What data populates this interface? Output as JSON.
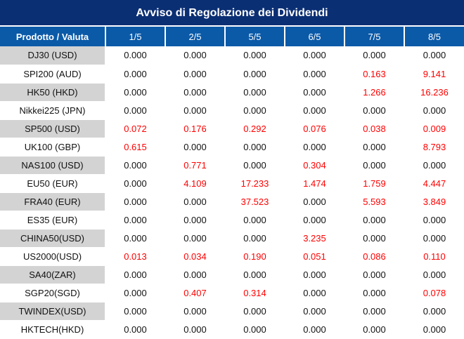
{
  "title": "Avviso di Regolazione dei Dividendi",
  "colors": {
    "header_bg": "#0b2f73",
    "column_header_bg": "#0b5aa8",
    "highlight": "#ff0000",
    "row_shade": "#d3d3d3"
  },
  "columns": [
    "Prodotto / Valuta",
    "1/5",
    "2/5",
    "5/5",
    "6/5",
    "7/5",
    "8/5"
  ],
  "rows": [
    {
      "name": "DJ30 (USD)",
      "values": [
        "0.000",
        "0.000",
        "0.000",
        "0.000",
        "0.000",
        "0.000"
      ]
    },
    {
      "name": "SPI200 (AUD)",
      "values": [
        "0.000",
        "0.000",
        "0.000",
        "0.000",
        "0.163",
        "9.141"
      ]
    },
    {
      "name": "HK50 (HKD)",
      "values": [
        "0.000",
        "0.000",
        "0.000",
        "0.000",
        "1.266",
        "16.236"
      ]
    },
    {
      "name": "Nikkei225 (JPN)",
      "values": [
        "0.000",
        "0.000",
        "0.000",
        "0.000",
        "0.000",
        "0.000"
      ]
    },
    {
      "name": "SP500 (USD)",
      "values": [
        "0.072",
        "0.176",
        "0.292",
        "0.076",
        "0.038",
        "0.009"
      ]
    },
    {
      "name": "UK100 (GBP)",
      "values": [
        "0.615",
        "0.000",
        "0.000",
        "0.000",
        "0.000",
        "8.793"
      ]
    },
    {
      "name": "NAS100 (USD)",
      "values": [
        "0.000",
        "0.771",
        "0.000",
        "0.304",
        "0.000",
        "0.000"
      ]
    },
    {
      "name": "EU50 (EUR)",
      "values": [
        "0.000",
        "4.109",
        "17.233",
        "1.474",
        "1.759",
        "4.447"
      ]
    },
    {
      "name": "FRA40 (EUR)",
      "values": [
        "0.000",
        "0.000",
        "37.523",
        "0.000",
        "5.593",
        "3.849"
      ]
    },
    {
      "name": "ES35 (EUR)",
      "values": [
        "0.000",
        "0.000",
        "0.000",
        "0.000",
        "0.000",
        "0.000"
      ]
    },
    {
      "name": "CHINA50(USD)",
      "values": [
        "0.000",
        "0.000",
        "0.000",
        "3.235",
        "0.000",
        "0.000"
      ]
    },
    {
      "name": "US2000(USD)",
      "values": [
        "0.013",
        "0.034",
        "0.190",
        "0.051",
        "0.086",
        "0.110"
      ]
    },
    {
      "name": "SA40(ZAR)",
      "values": [
        "0.000",
        "0.000",
        "0.000",
        "0.000",
        "0.000",
        "0.000"
      ]
    },
    {
      "name": "SGP20(SGD)",
      "values": [
        "0.000",
        "0.407",
        "0.314",
        "0.000",
        "0.000",
        "0.078"
      ]
    },
    {
      "name": "TWINDEX(USD)",
      "values": [
        "0.000",
        "0.000",
        "0.000",
        "0.000",
        "0.000",
        "0.000"
      ]
    },
    {
      "name": "HKTECH(HKD)",
      "values": [
        "0.000",
        "0.000",
        "0.000",
        "0.000",
        "0.000",
        "0.000"
      ]
    }
  ]
}
